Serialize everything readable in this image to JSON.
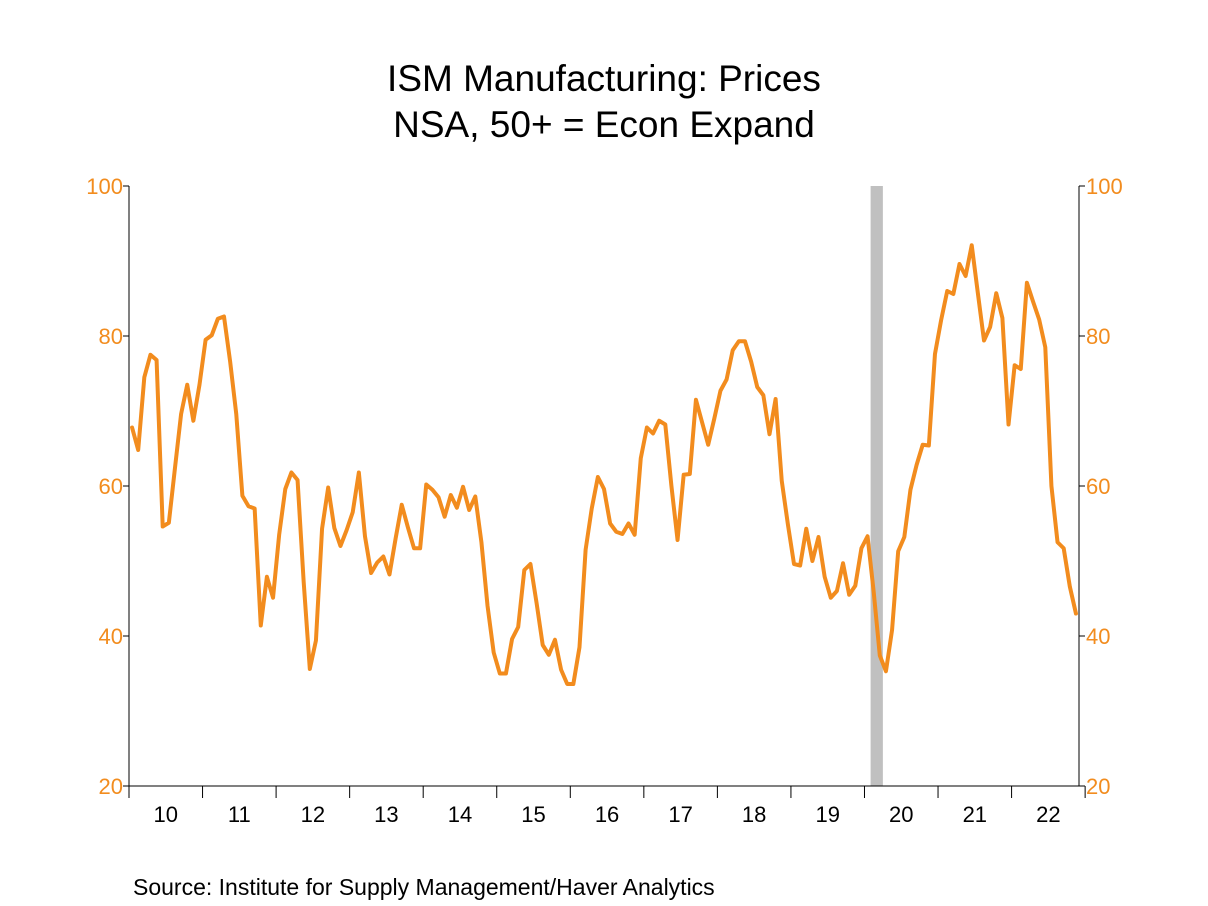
{
  "chart_data": {
    "type": "line",
    "title": "ISM Manufacturing: Prices",
    "subtitle": "NSA, 50+ = Econ Expand",
    "source": "Source:  Institute for Supply Management/Haver Analytics",
    "ylim": [
      20,
      100
    ],
    "yticks": [
      20,
      40,
      60,
      80,
      100
    ],
    "ytick_labels": [
      "20",
      "40",
      "60",
      "80",
      "100"
    ],
    "x_range": [
      "2010-01",
      "2022-11"
    ],
    "xtick_labels": [
      "10",
      "11",
      "12",
      "13",
      "14",
      "15",
      "16",
      "17",
      "18",
      "19",
      "20",
      "21",
      "22"
    ],
    "recession_shading": {
      "start": "2020-02",
      "end": "2020-04",
      "color": "#c0c0c0"
    },
    "grid": false,
    "series": [
      {
        "color": "#f28c1e",
        "x": [
          "2010-01",
          "2010-02",
          "2010-03",
          "2010-04",
          "2010-05",
          "2010-06",
          "2010-07",
          "2010-08",
          "2010-09",
          "2010-10",
          "2010-11",
          "2010-12",
          "2011-01",
          "2011-02",
          "2011-03",
          "2011-04",
          "2011-05",
          "2011-06",
          "2011-07",
          "2011-08",
          "2011-09",
          "2011-10",
          "2011-11",
          "2011-12",
          "2012-01",
          "2012-02",
          "2012-03",
          "2012-04",
          "2012-05",
          "2012-06",
          "2012-07",
          "2012-08",
          "2012-09",
          "2012-10",
          "2012-11",
          "2012-12",
          "2013-01",
          "2013-02",
          "2013-03",
          "2013-04",
          "2013-05",
          "2013-06",
          "2013-07",
          "2013-08",
          "2013-09",
          "2013-10",
          "2013-11",
          "2013-12",
          "2014-01",
          "2014-02",
          "2014-03",
          "2014-04",
          "2014-05",
          "2014-06",
          "2014-07",
          "2014-08",
          "2014-09",
          "2014-10",
          "2014-11",
          "2014-12",
          "2015-01",
          "2015-02",
          "2015-03",
          "2015-04",
          "2015-05",
          "2015-06",
          "2015-07",
          "2015-08",
          "2015-09",
          "2015-10",
          "2015-11",
          "2015-12",
          "2016-01",
          "2016-02",
          "2016-03",
          "2016-04",
          "2016-05",
          "2016-06",
          "2016-07",
          "2016-08",
          "2016-09",
          "2016-10",
          "2016-11",
          "2016-12",
          "2017-01",
          "2017-02",
          "2017-03",
          "2017-04",
          "2017-05",
          "2017-06",
          "2017-07",
          "2017-08",
          "2017-09",
          "2017-10",
          "2017-11",
          "2017-12",
          "2018-01",
          "2018-02",
          "2018-03",
          "2018-04",
          "2018-05",
          "2018-06",
          "2018-07",
          "2018-08",
          "2018-09",
          "2018-10",
          "2018-11",
          "2018-12",
          "2019-01",
          "2019-02",
          "2019-03",
          "2019-04",
          "2019-05",
          "2019-06",
          "2019-07",
          "2019-08",
          "2019-09",
          "2019-10",
          "2019-11",
          "2019-12",
          "2020-01",
          "2020-02",
          "2020-03",
          "2020-04",
          "2020-05",
          "2020-06",
          "2020-07",
          "2020-08",
          "2020-09",
          "2020-10",
          "2020-11",
          "2020-12",
          "2021-01",
          "2021-02",
          "2021-03",
          "2021-04",
          "2021-05",
          "2021-06",
          "2021-07",
          "2021-08",
          "2021-09",
          "2021-10",
          "2021-11",
          "2021-12",
          "2022-01",
          "2022-02",
          "2022-03",
          "2022-04",
          "2022-05",
          "2022-06",
          "2022-07",
          "2022-08",
          "2022-09",
          "2022-10",
          "2022-11"
        ],
        "values": [
          67.8,
          64.8,
          74.5,
          77.5,
          76.8,
          54.6,
          55.1,
          62.4,
          69.6,
          73.5,
          68.7,
          73.5,
          79.5,
          80.1,
          82.3,
          82.6,
          76.6,
          69.6,
          58.7,
          57.3,
          57.0,
          41.4,
          47.9,
          45.1,
          53.5,
          59.6,
          61.8,
          60.8,
          47.2,
          35.6,
          39.4,
          54.3,
          59.8,
          54.4,
          52.0,
          54.1,
          56.5,
          61.8,
          53.3,
          48.4,
          49.8,
          50.6,
          48.2,
          53.0,
          57.5,
          54.5,
          51.7,
          51.7,
          60.2,
          59.5,
          58.5,
          55.9,
          58.8,
          57.1,
          59.9,
          56.8,
          58.6,
          52.5,
          44.0,
          37.8,
          35.0,
          35.0,
          39.6,
          41.2,
          48.8,
          49.6,
          44.4,
          38.8,
          37.5,
          39.5,
          35.5,
          33.6,
          33.6,
          38.5,
          51.5,
          57.0,
          61.2,
          59.6,
          55.0,
          53.9,
          53.6,
          55.0,
          53.5,
          63.7,
          67.8,
          67.0,
          68.7,
          68.2,
          60.0,
          52.8,
          61.5,
          61.6,
          71.5,
          68.5,
          65.5,
          69.0,
          72.7,
          74.2,
          78.1,
          79.3,
          79.3,
          76.6,
          73.2,
          72.1,
          66.9,
          71.6,
          60.7,
          54.9,
          49.6,
          49.4,
          54.3,
          50.0,
          53.2,
          47.9,
          45.1,
          46.0,
          49.7,
          45.5,
          46.7,
          51.7,
          53.3,
          45.9,
          37.4,
          35.3,
          40.8,
          51.3,
          53.2,
          59.5,
          62.8,
          65.5,
          65.4,
          77.6,
          82.1,
          86.0,
          85.6,
          89.6,
          88.0,
          92.1,
          85.7,
          79.4,
          81.2,
          85.7,
          82.4,
          68.2,
          76.1,
          75.6,
          87.1,
          84.6,
          82.2,
          78.5,
          60.0,
          52.5,
          51.7,
          46.6,
          43.0
        ]
      }
    ]
  }
}
